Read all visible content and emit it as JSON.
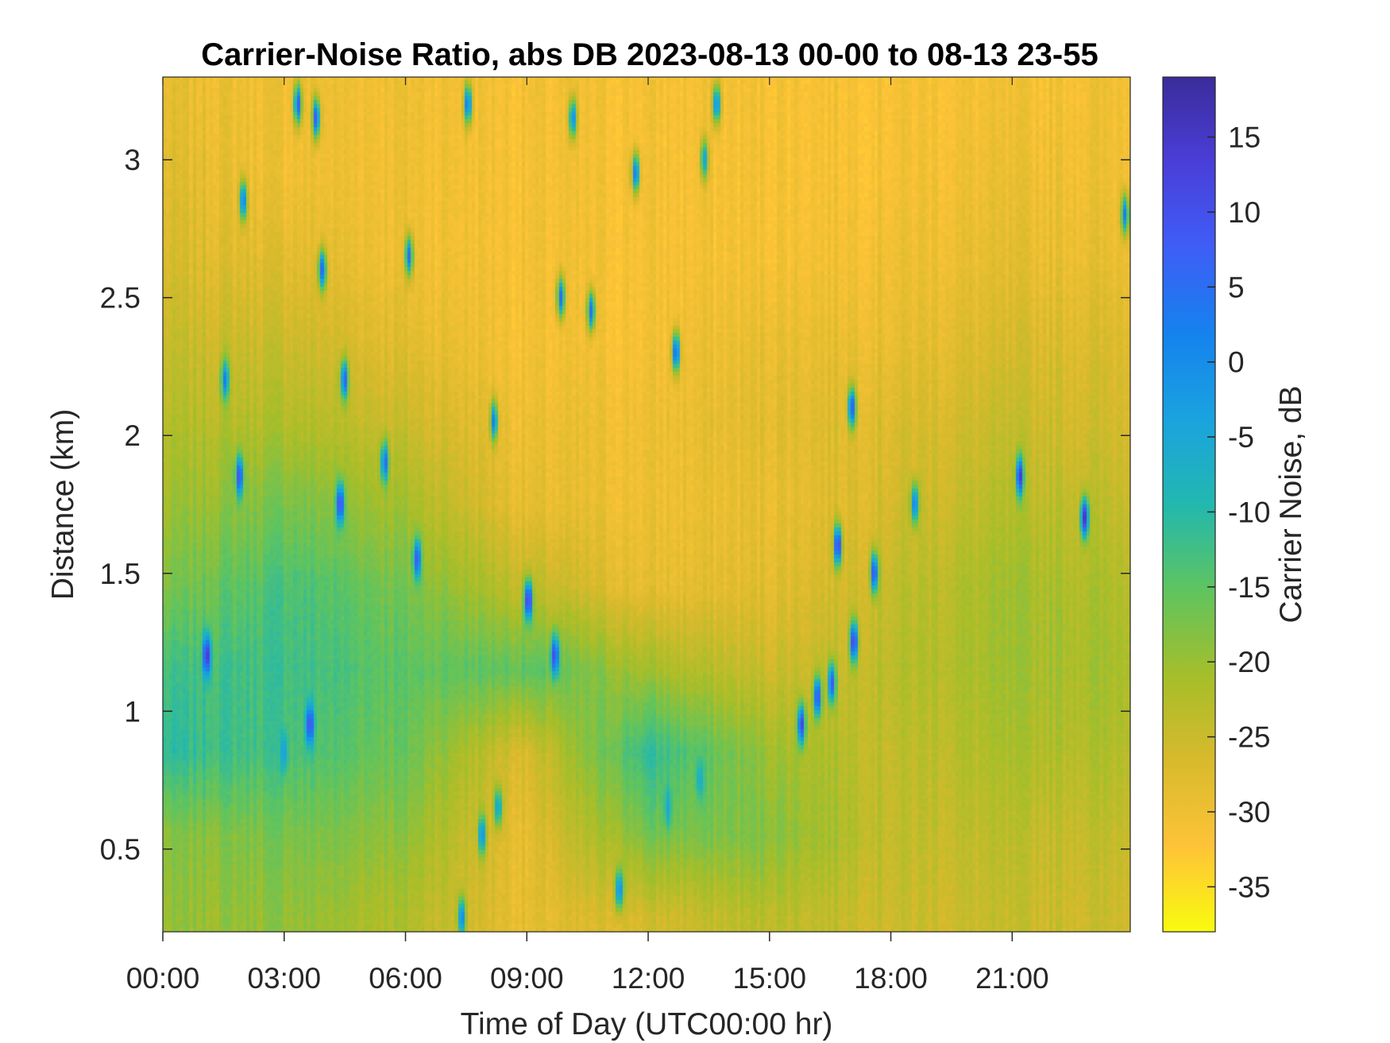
{
  "chart_data": {
    "type": "heatmap",
    "title": "Carrier-Noise Ratio, abs DB 2023-08-13 00-00 to 08-13 23-55",
    "xlabel": "Time of Day (UTC00:00 hr)",
    "ylabel": "Distance (km)",
    "x_ticks": [
      {
        "value": 0,
        "label": "00:00"
      },
      {
        "value": 3,
        "label": "03:00"
      },
      {
        "value": 6,
        "label": "06:00"
      },
      {
        "value": 9,
        "label": "09:00"
      },
      {
        "value": 12,
        "label": "12:00"
      },
      {
        "value": 15,
        "label": "15:00"
      },
      {
        "value": 18,
        "label": "18:00"
      },
      {
        "value": 21,
        "label": "21:00"
      }
    ],
    "y_ticks": [
      {
        "value": 0.5,
        "label": "0.5"
      },
      {
        "value": 1,
        "label": "1"
      },
      {
        "value": 1.5,
        "label": "1.5"
      },
      {
        "value": 2,
        "label": "2"
      },
      {
        "value": 2.5,
        "label": "2.5"
      },
      {
        "value": 3,
        "label": "3"
      }
    ],
    "xlim": [
      0,
      23.92
    ],
    "ylim": [
      0.2,
      3.3
    ],
    "colorbar": {
      "label": "Carrier Noise, dB",
      "clim": [
        -38,
        19
      ],
      "ticks": [
        {
          "value": 15,
          "label": "15"
        },
        {
          "value": 10,
          "label": "10"
        },
        {
          "value": 5,
          "label": "5"
        },
        {
          "value": 0,
          "label": "0"
        },
        {
          "value": -5,
          "label": "-5"
        },
        {
          "value": -10,
          "label": "-10"
        },
        {
          "value": -15,
          "label": "-15"
        },
        {
          "value": -20,
          "label": "-20"
        },
        {
          "value": -25,
          "label": "-25"
        },
        {
          "value": -30,
          "label": "-30"
        },
        {
          "value": -35,
          "label": "-35"
        }
      ],
      "colormap": [
        "#F9FB0E",
        "#FEC338",
        "#D8BA2C",
        "#A5BE2A",
        "#5FC45F",
        "#22B8AF",
        "#1AA3DF",
        "#1582EE",
        "#3E5EF6",
        "#4A3ED9",
        "#3B2C9A"
      ]
    },
    "field_points": [
      {
        "x": 0.0,
        "y": 0.25,
        "v": -20
      },
      {
        "x": 0.0,
        "y": 0.55,
        "v": -19
      },
      {
        "x": 0.0,
        "y": 0.85,
        "v": -11
      },
      {
        "x": 0.0,
        "y": 1.15,
        "v": -13
      },
      {
        "x": 0.0,
        "y": 1.45,
        "v": -18
      },
      {
        "x": 0.0,
        "y": 1.75,
        "v": -21
      },
      {
        "x": 0.0,
        "y": 2.05,
        "v": -23
      },
      {
        "x": 0.0,
        "y": 2.35,
        "v": -25
      },
      {
        "x": 0.0,
        "y": 2.65,
        "v": -27
      },
      {
        "x": 0.0,
        "y": 2.95,
        "v": -28
      },
      {
        "x": 0.0,
        "y": 3.25,
        "v": -29
      },
      {
        "x": 3.0,
        "y": 0.25,
        "v": -19
      },
      {
        "x": 3.0,
        "y": 0.55,
        "v": -17
      },
      {
        "x": 3.0,
        "y": 0.85,
        "v": -13
      },
      {
        "x": 3.0,
        "y": 1.15,
        "v": -12
      },
      {
        "x": 3.0,
        "y": 1.45,
        "v": -13
      },
      {
        "x": 3.0,
        "y": 1.75,
        "v": -17
      },
      {
        "x": 3.0,
        "y": 2.05,
        "v": -22
      },
      {
        "x": 3.0,
        "y": 2.35,
        "v": -25
      },
      {
        "x": 3.0,
        "y": 2.65,
        "v": -28
      },
      {
        "x": 3.0,
        "y": 2.95,
        "v": -30
      },
      {
        "x": 3.0,
        "y": 3.25,
        "v": -30
      },
      {
        "x": 6.0,
        "y": 0.25,
        "v": -22
      },
      {
        "x": 6.0,
        "y": 0.55,
        "v": -19
      },
      {
        "x": 6.0,
        "y": 0.85,
        "v": -16
      },
      {
        "x": 6.0,
        "y": 1.15,
        "v": -15
      },
      {
        "x": 6.0,
        "y": 1.45,
        "v": -17
      },
      {
        "x": 6.0,
        "y": 1.75,
        "v": -21
      },
      {
        "x": 6.0,
        "y": 2.05,
        "v": -25
      },
      {
        "x": 6.0,
        "y": 2.35,
        "v": -28
      },
      {
        "x": 6.0,
        "y": 2.65,
        "v": -30
      },
      {
        "x": 6.0,
        "y": 2.95,
        "v": -30
      },
      {
        "x": 6.0,
        "y": 3.25,
        "v": -30
      },
      {
        "x": 9.0,
        "y": 0.25,
        "v": -29
      },
      {
        "x": 9.0,
        "y": 0.55,
        "v": -29
      },
      {
        "x": 9.0,
        "y": 0.85,
        "v": -27
      },
      {
        "x": 9.0,
        "y": 1.15,
        "v": -15
      },
      {
        "x": 9.0,
        "y": 1.45,
        "v": -24
      },
      {
        "x": 9.0,
        "y": 1.75,
        "v": -29
      },
      {
        "x": 9.0,
        "y": 2.05,
        "v": -30
      },
      {
        "x": 9.0,
        "y": 2.35,
        "v": -31
      },
      {
        "x": 9.0,
        "y": 2.65,
        "v": -31
      },
      {
        "x": 9.0,
        "y": 2.95,
        "v": -31
      },
      {
        "x": 9.0,
        "y": 3.25,
        "v": -31
      },
      {
        "x": 12.0,
        "y": 0.25,
        "v": -26
      },
      {
        "x": 12.0,
        "y": 0.55,
        "v": -17
      },
      {
        "x": 12.0,
        "y": 0.85,
        "v": -11
      },
      {
        "x": 12.0,
        "y": 1.15,
        "v": -21
      },
      {
        "x": 12.0,
        "y": 1.45,
        "v": -29
      },
      {
        "x": 12.0,
        "y": 1.75,
        "v": -30
      },
      {
        "x": 12.0,
        "y": 2.05,
        "v": -30
      },
      {
        "x": 12.0,
        "y": 2.35,
        "v": -31
      },
      {
        "x": 12.0,
        "y": 2.65,
        "v": -31
      },
      {
        "x": 12.0,
        "y": 2.95,
        "v": -31
      },
      {
        "x": 12.0,
        "y": 3.25,
        "v": -31
      },
      {
        "x": 15.0,
        "y": 0.25,
        "v": -23
      },
      {
        "x": 15.0,
        "y": 0.55,
        "v": -18
      },
      {
        "x": 15.0,
        "y": 0.85,
        "v": -20
      },
      {
        "x": 15.0,
        "y": 1.15,
        "v": -25
      },
      {
        "x": 15.0,
        "y": 1.45,
        "v": -28
      },
      {
        "x": 15.0,
        "y": 1.75,
        "v": -29
      },
      {
        "x": 15.0,
        "y": 2.05,
        "v": -28
      },
      {
        "x": 15.0,
        "y": 2.35,
        "v": -29
      },
      {
        "x": 15.0,
        "y": 2.65,
        "v": -31
      },
      {
        "x": 15.0,
        "y": 2.95,
        "v": -31
      },
      {
        "x": 15.0,
        "y": 3.25,
        "v": -31
      },
      {
        "x": 18.0,
        "y": 0.25,
        "v": -25
      },
      {
        "x": 18.0,
        "y": 0.55,
        "v": -24
      },
      {
        "x": 18.0,
        "y": 0.85,
        "v": -24
      },
      {
        "x": 18.0,
        "y": 1.15,
        "v": -23
      },
      {
        "x": 18.0,
        "y": 1.45,
        "v": -24
      },
      {
        "x": 18.0,
        "y": 1.75,
        "v": -26
      },
      {
        "x": 18.0,
        "y": 2.05,
        "v": -27
      },
      {
        "x": 18.0,
        "y": 2.35,
        "v": -29
      },
      {
        "x": 18.0,
        "y": 2.65,
        "v": -30
      },
      {
        "x": 18.0,
        "y": 2.95,
        "v": -31
      },
      {
        "x": 18.0,
        "y": 3.25,
        "v": -31
      },
      {
        "x": 21.0,
        "y": 0.25,
        "v": -25
      },
      {
        "x": 21.0,
        "y": 0.55,
        "v": -24
      },
      {
        "x": 21.0,
        "y": 0.85,
        "v": -22
      },
      {
        "x": 21.0,
        "y": 1.15,
        "v": -21
      },
      {
        "x": 21.0,
        "y": 1.45,
        "v": -21
      },
      {
        "x": 21.0,
        "y": 1.75,
        "v": -23
      },
      {
        "x": 21.0,
        "y": 2.05,
        "v": -25
      },
      {
        "x": 21.0,
        "y": 2.35,
        "v": -27
      },
      {
        "x": 21.0,
        "y": 2.65,
        "v": -29
      },
      {
        "x": 21.0,
        "y": 2.95,
        "v": -30
      },
      {
        "x": 21.0,
        "y": 3.25,
        "v": -31
      },
      {
        "x": 23.9,
        "y": 0.25,
        "v": -25
      },
      {
        "x": 23.9,
        "y": 0.55,
        "v": -24
      },
      {
        "x": 23.9,
        "y": 0.85,
        "v": -22
      },
      {
        "x": 23.9,
        "y": 1.15,
        "v": -21
      },
      {
        "x": 23.9,
        "y": 1.45,
        "v": -22
      },
      {
        "x": 23.9,
        "y": 1.75,
        "v": -24
      },
      {
        "x": 23.9,
        "y": 2.05,
        "v": -26
      },
      {
        "x": 23.9,
        "y": 2.35,
        "v": -27
      },
      {
        "x": 23.9,
        "y": 2.65,
        "v": -29
      },
      {
        "x": 23.9,
        "y": 2.95,
        "v": -30
      },
      {
        "x": 23.9,
        "y": 3.25,
        "v": -30
      }
    ],
    "features": [
      {
        "x": 1.1,
        "y": 1.2,
        "v": 15
      },
      {
        "x": 1.55,
        "y": 2.2,
        "v": 3
      },
      {
        "x": 1.9,
        "y": 1.85,
        "v": 12
      },
      {
        "x": 2.0,
        "y": 2.85,
        "v": 4
      },
      {
        "x": 3.0,
        "y": 0.85,
        "v": -3
      },
      {
        "x": 3.65,
        "y": 0.95,
        "v": 12
      },
      {
        "x": 3.35,
        "y": 3.2,
        "v": 8
      },
      {
        "x": 3.8,
        "y": 3.15,
        "v": 10
      },
      {
        "x": 3.95,
        "y": 2.6,
        "v": 5
      },
      {
        "x": 4.4,
        "y": 1.75,
        "v": 13
      },
      {
        "x": 4.5,
        "y": 2.2,
        "v": 8
      },
      {
        "x": 5.5,
        "y": 1.9,
        "v": 6
      },
      {
        "x": 6.1,
        "y": 2.65,
        "v": 5
      },
      {
        "x": 6.3,
        "y": 1.55,
        "v": 10
      },
      {
        "x": 7.4,
        "y": 0.25,
        "v": 3
      },
      {
        "x": 7.55,
        "y": 3.2,
        "v": 5
      },
      {
        "x": 7.9,
        "y": 0.55,
        "v": 0
      },
      {
        "x": 8.3,
        "y": 0.65,
        "v": -3
      },
      {
        "x": 8.2,
        "y": 2.05,
        "v": 3
      },
      {
        "x": 9.05,
        "y": 1.4,
        "v": 16
      },
      {
        "x": 9.7,
        "y": 1.2,
        "v": 12
      },
      {
        "x": 9.85,
        "y": 2.5,
        "v": 6
      },
      {
        "x": 10.15,
        "y": 3.15,
        "v": 0
      },
      {
        "x": 10.6,
        "y": 2.45,
        "v": 5
      },
      {
        "x": 11.3,
        "y": 0.35,
        "v": 2
      },
      {
        "x": 11.7,
        "y": 2.95,
        "v": 5
      },
      {
        "x": 12.7,
        "y": 2.3,
        "v": 7
      },
      {
        "x": 13.4,
        "y": 3.0,
        "v": -4
      },
      {
        "x": 13.7,
        "y": 3.2,
        "v": 2
      },
      {
        "x": 13.3,
        "y": 0.75,
        "v": -6
      },
      {
        "x": 12.5,
        "y": 0.65,
        "v": -5
      },
      {
        "x": 15.8,
        "y": 0.95,
        "v": 14
      },
      {
        "x": 16.2,
        "y": 1.05,
        "v": 12
      },
      {
        "x": 16.55,
        "y": 1.1,
        "v": 10
      },
      {
        "x": 17.05,
        "y": 2.1,
        "v": 8
      },
      {
        "x": 16.7,
        "y": 1.6,
        "v": 15
      },
      {
        "x": 17.1,
        "y": 1.25,
        "v": 14
      },
      {
        "x": 17.6,
        "y": 1.5,
        "v": 12
      },
      {
        "x": 18.6,
        "y": 1.75,
        "v": 4
      },
      {
        "x": 21.2,
        "y": 1.85,
        "v": 16
      },
      {
        "x": 22.8,
        "y": 1.7,
        "v": 15
      },
      {
        "x": 23.8,
        "y": 2.8,
        "v": 3
      }
    ]
  }
}
